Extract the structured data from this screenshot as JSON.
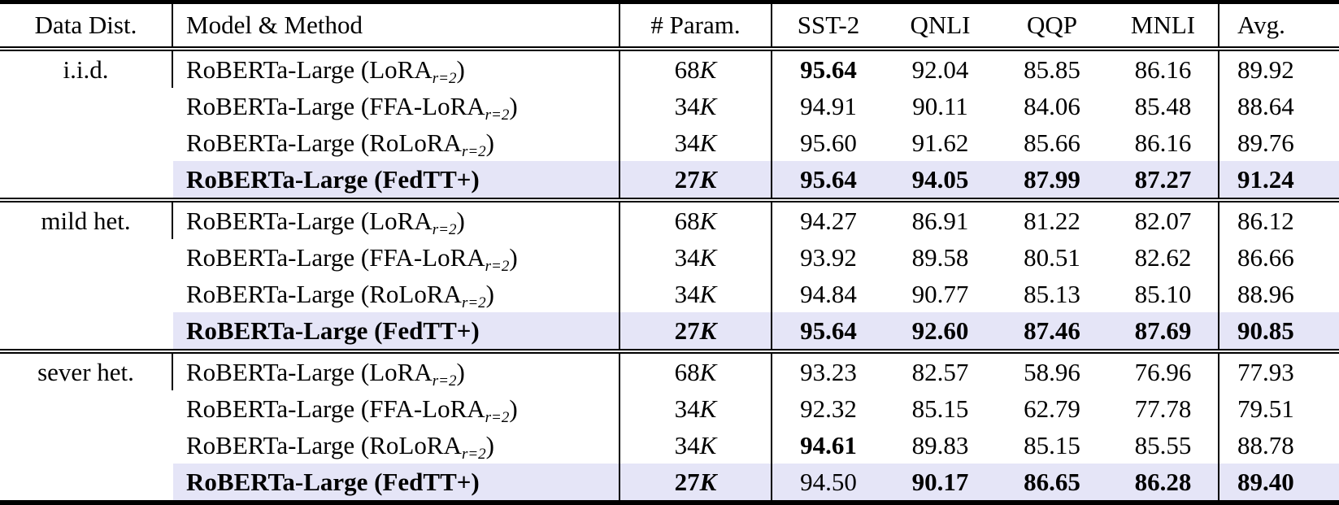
{
  "table": {
    "highlight_color": "#e5e5f7",
    "text_color": "#000000",
    "headers": {
      "data_dist": "Data Dist.",
      "model_method": "Model & Method",
      "param": "# Param.",
      "sst2": "SST-2",
      "qnli": "QNLI",
      "qqp": "QQP",
      "mnli": "MNLI",
      "avg": "Avg."
    },
    "groups": [
      {
        "label": "i.i.d.",
        "rows": [
          {
            "name": "RoBERTa-Large (LoRA",
            "sub": "r=2",
            "close": ")",
            "param_num": "68",
            "param_unit": "K",
            "sst2": "95.64",
            "qnli": "92.04",
            "qqp": "85.85",
            "mnli": "86.16",
            "avg": "89.92",
            "bold": [
              "sst2"
            ],
            "highlight": false
          },
          {
            "name": "RoBERTa-Large (FFA-LoRA",
            "sub": "r=2",
            "close": ")",
            "param_num": "34",
            "param_unit": "K",
            "sst2": "94.91",
            "qnli": "90.11",
            "qqp": "84.06",
            "mnli": "85.48",
            "avg": "88.64",
            "bold": [],
            "highlight": false
          },
          {
            "name": "RoBERTa-Large (RoLoRA",
            "sub": "r=2",
            "close": ")",
            "param_num": "34",
            "param_unit": "K",
            "sst2": "95.60",
            "qnli": "91.62",
            "qqp": "85.66",
            "mnli": "86.16",
            "avg": "89.76",
            "bold": [],
            "highlight": false
          },
          {
            "name": "RoBERTa-Large (FedTT+)",
            "sub": "",
            "close": "",
            "param_num": "27",
            "param_unit": "K",
            "sst2": "95.64",
            "qnli": "94.05",
            "qqp": "87.99",
            "mnli": "87.27",
            "avg": "91.24",
            "bold": [
              "name",
              "param",
              "sst2",
              "qnli",
              "qqp",
              "mnli",
              "avg"
            ],
            "highlight": true
          }
        ]
      },
      {
        "label": "mild het.",
        "rows": [
          {
            "name": "RoBERTa-Large (LoRA",
            "sub": "r=2",
            "close": ")",
            "param_num": "68",
            "param_unit": "K",
            "sst2": "94.27",
            "qnli": "86.91",
            "qqp": "81.22",
            "mnli": "82.07",
            "avg": "86.12",
            "bold": [],
            "highlight": false
          },
          {
            "name": "RoBERTa-Large (FFA-LoRA",
            "sub": "r=2",
            "close": ")",
            "param_num": "34",
            "param_unit": "K",
            "sst2": "93.92",
            "qnli": "89.58",
            "qqp": "80.51",
            "mnli": "82.62",
            "avg": "86.66",
            "bold": [],
            "highlight": false
          },
          {
            "name": "RoBERTa-Large (RoLoRA",
            "sub": "r=2",
            "close": ")",
            "param_num": "34",
            "param_unit": "K",
            "sst2": "94.84",
            "qnli": "90.77",
            "qqp": "85.13",
            "mnli": "85.10",
            "avg": "88.96",
            "bold": [],
            "highlight": false
          },
          {
            "name": "RoBERTa-Large (FedTT+)",
            "sub": "",
            "close": "",
            "param_num": "27",
            "param_unit": "K",
            "sst2": "95.64",
            "qnli": "92.60",
            "qqp": "87.46",
            "mnli": "87.69",
            "avg": "90.85",
            "bold": [
              "name",
              "param",
              "sst2",
              "qnli",
              "qqp",
              "mnli",
              "avg"
            ],
            "highlight": true
          }
        ]
      },
      {
        "label": "sever het.",
        "rows": [
          {
            "name": "RoBERTa-Large (LoRA",
            "sub": "r=2",
            "close": ")",
            "param_num": "68",
            "param_unit": "K",
            "sst2": "93.23",
            "qnli": "82.57",
            "qqp": "58.96",
            "mnli": "76.96",
            "avg": "77.93",
            "bold": [],
            "highlight": false
          },
          {
            "name": "RoBERTa-Large (FFA-LoRA",
            "sub": "r=2",
            "close": ")",
            "param_num": "34",
            "param_unit": "K",
            "sst2": "92.32",
            "qnli": "85.15",
            "qqp": "62.79",
            "mnli": "77.78",
            "avg": "79.51",
            "bold": [],
            "highlight": false
          },
          {
            "name": "RoBERTa-Large (RoLoRA",
            "sub": "r=2",
            "close": ")",
            "param_num": "34",
            "param_unit": "K",
            "sst2": "94.61",
            "qnli": "89.83",
            "qqp": "85.15",
            "mnli": "85.55",
            "avg": "88.78",
            "bold": [
              "sst2"
            ],
            "highlight": false
          },
          {
            "name": "RoBERTa-Large (FedTT+)",
            "sub": "",
            "close": "",
            "param_num": "27",
            "param_unit": "K",
            "sst2": "94.50",
            "qnli": "90.17",
            "qqp": "86.65",
            "mnli": "86.28",
            "avg": "89.40",
            "bold": [
              "name",
              "param",
              "qnli",
              "qqp",
              "mnli",
              "avg"
            ],
            "highlight": true
          }
        ]
      }
    ]
  }
}
